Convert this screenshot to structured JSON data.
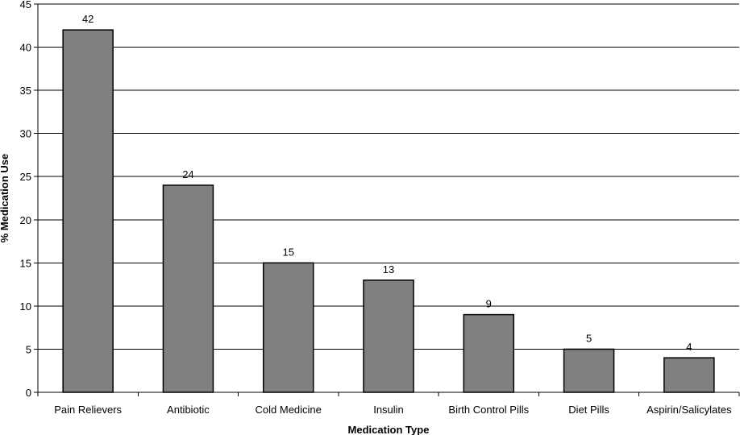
{
  "chart_data": {
    "type": "bar",
    "title": "",
    "xlabel": "Medication Type",
    "ylabel": "% Medication Use",
    "categories": [
      "Pain Relievers",
      "Antibiotic",
      "Cold Medicine",
      "Insulin",
      "Birth Control Pills",
      "Diet Pills",
      "Aspirin/Salicylates"
    ],
    "values": [
      42,
      24,
      15,
      13,
      9,
      5,
      4
    ],
    "ylim": [
      0,
      45
    ],
    "yticks": [
      0,
      5,
      10,
      15,
      20,
      25,
      30,
      35,
      40,
      45
    ],
    "grid": true,
    "legend": "none",
    "data_labels": true,
    "colors": {
      "bar_fill": "#808080",
      "bar_stroke": "#000000",
      "grid": "#000000",
      "axis": "#000000"
    }
  }
}
